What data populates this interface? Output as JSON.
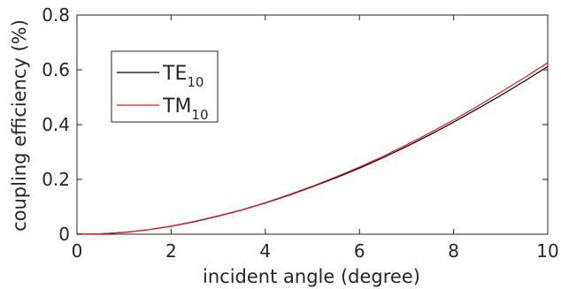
{
  "chart_data": {
    "type": "line",
    "xlabel": "incident angle (degree)",
    "ylabel": "coupling efficiency (%)",
    "xlim": [
      0,
      10
    ],
    "ylim": [
      0,
      0.8
    ],
    "xticks": [
      "0",
      "2",
      "4",
      "6",
      "8",
      "10"
    ],
    "yticks": [
      "0",
      "0.2",
      "0.4",
      "0.6",
      "0.8"
    ],
    "grid": false,
    "legend_position": "top-left",
    "x": [
      0,
      0.5,
      1,
      1.5,
      2,
      2.5,
      3,
      3.5,
      4,
      4.5,
      5,
      5.5,
      6,
      6.5,
      7,
      7.5,
      8,
      8.5,
      9,
      9.5,
      10
    ],
    "series": [
      {
        "name": "TE",
        "name_subscript": "10",
        "color": "#000000",
        "values": [
          0,
          0.0015,
          0.0065,
          0.016,
          0.029,
          0.046,
          0.066,
          0.088,
          0.114,
          0.142,
          0.173,
          0.206,
          0.241,
          0.279,
          0.32,
          0.363,
          0.409,
          0.457,
          0.506,
          0.558,
          0.612
        ]
      },
      {
        "name": "TM",
        "name_subscript": "10",
        "color": "#e31a1c",
        "values": [
          0,
          0.0015,
          0.0066,
          0.0162,
          0.0295,
          0.047,
          0.067,
          0.089,
          0.115,
          0.144,
          0.175,
          0.209,
          0.245,
          0.284,
          0.326,
          0.37,
          0.417,
          0.466,
          0.518,
          0.571,
          0.626
        ]
      }
    ]
  }
}
